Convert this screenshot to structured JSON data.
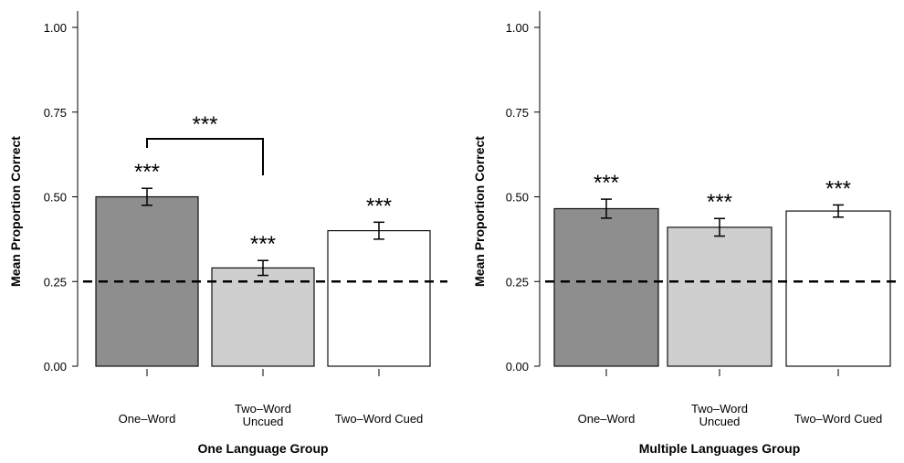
{
  "chart_data": [
    {
      "type": "bar",
      "xlabel": "One Language Group",
      "ylabel": "Mean Proportion Correct",
      "ylim": [
        0,
        1
      ],
      "yticks": [
        "0.00",
        "0.25",
        "0.50",
        "0.75",
        "1.00"
      ],
      "ytick_values": [
        0,
        0.25,
        0.5,
        0.75,
        1.0
      ],
      "categories": [
        [
          "One–Word"
        ],
        [
          "Two–Word",
          "Uncued"
        ],
        [
          "Two–Word Cued"
        ]
      ],
      "values": [
        0.5,
        0.29,
        0.4
      ],
      "errors": [
        0.025,
        0.022,
        0.025
      ],
      "bar_colors": [
        "#8e8e8e",
        "#cfcfcf",
        "#ffffff"
      ],
      "significance": [
        "***",
        "***",
        "***"
      ],
      "bracket": {
        "from": 0,
        "to": 1,
        "label": "***"
      },
      "reference_line": 0.25,
      "grid": false
    },
    {
      "type": "bar",
      "xlabel": "Multiple Languages Group",
      "ylabel": "Mean Proportion Correct",
      "ylim": [
        0,
        1
      ],
      "yticks": [
        "0.00",
        "0.25",
        "0.50",
        "0.75",
        "1.00"
      ],
      "ytick_values": [
        0,
        0.25,
        0.5,
        0.75,
        1.0
      ],
      "categories": [
        [
          "One–Word"
        ],
        [
          "Two–Word",
          "Uncued"
        ],
        [
          "Two–Word Cued"
        ]
      ],
      "values": [
        0.465,
        0.41,
        0.458
      ],
      "errors": [
        0.028,
        0.026,
        0.018
      ],
      "bar_colors": [
        "#8e8e8e",
        "#cfcfcf",
        "#ffffff"
      ],
      "significance": [
        "***",
        "***",
        "***"
      ],
      "bracket": null,
      "reference_line": 0.25,
      "grid": false
    }
  ]
}
